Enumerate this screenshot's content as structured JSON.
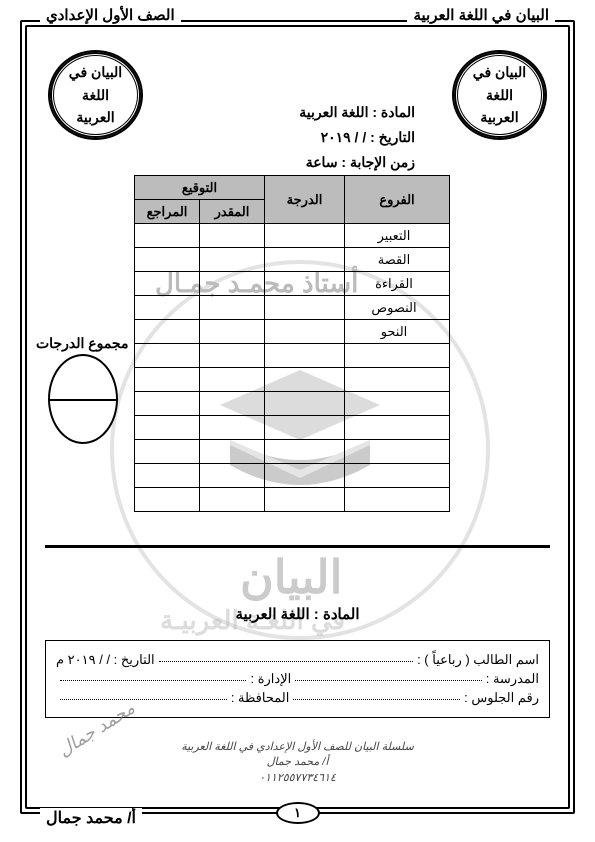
{
  "header": {
    "right": "البيان  في  اللغة العربية",
    "left": "الصف الأول الإعدادي"
  },
  "badges": {
    "text": "البيان في\nاللغة\nالعربية"
  },
  "meta": {
    "subject_label": "المادة : اللغة العربية",
    "date_label": "التاريخ :    /    / ٢٠١٩",
    "time_label": "زمن الإجابة : ساعة"
  },
  "table": {
    "headers": {
      "branches": "الفروع",
      "grade": "الدرجة",
      "signature": "التوقيع",
      "examiner": "المقدر",
      "reviewer": "المراجع"
    },
    "subjects": [
      "التعبير",
      "القصة",
      "القراءة",
      "النصوص",
      "النحو"
    ],
    "blank_rows": 7,
    "col_widths": {
      "subject": 105,
      "grade": 80,
      "sign": 65
    },
    "header_bg": "#bcbcbc",
    "border_color": "#000000"
  },
  "total": {
    "label": "مجموع الدرجات"
  },
  "subject_bar": "المادة : اللغة العربية",
  "info_box": {
    "row1": {
      "right": "اسم الطالب ( رباعياً ) :",
      "left": "التاريخ :    /    / ٢٠١٩ م"
    },
    "row2": {
      "right": "المدرسة :",
      "left": "الإدارة :"
    },
    "row3": {
      "right": "رقم الجلوس :",
      "left": "المحافظة :"
    }
  },
  "watermark": {
    "top_text": "أستاذ محمـد جمـال",
    "bottom_text": "في اللغـة العربيـة",
    "brand": "البيان"
  },
  "contact": {
    "line1": "سلسلة البيان للصف الأول الإعدادي في اللغة العربية",
    "line2": "أ/ محمد جمال",
    "phone": "٠١١٢٥٥٧٧٣٤٦١٤"
  },
  "footer": {
    "page": "١",
    "author": "أ/ محمد جمال"
  },
  "signature": "محمد جمال",
  "colors": {
    "text": "#000000",
    "bg": "#ffffff",
    "watermark": "#bbbbbb"
  }
}
